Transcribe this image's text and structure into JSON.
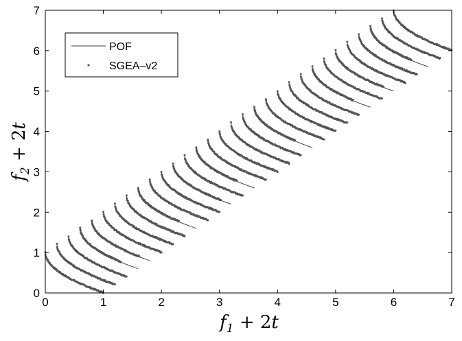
{
  "chart_data": {
    "type": "line",
    "xlabel": "f_1 + 2t",
    "ylabel": "f_2 + 2t",
    "xlim": [
      0,
      7
    ],
    "ylim": [
      0,
      7
    ],
    "xticks": [
      "0",
      "1",
      "2",
      "3",
      "4",
      "5",
      "6",
      "7"
    ],
    "yticks": [
      "0",
      "1",
      "2",
      "3",
      "4",
      "5",
      "6",
      "7"
    ],
    "grid": false,
    "legend_position": "top-left",
    "offsets": [
      0,
      0.2,
      0.4,
      0.6,
      0.8,
      1.0,
      1.2,
      1.4,
      1.6,
      1.8,
      2.0,
      2.2,
      2.4,
      2.6,
      2.8,
      3.0,
      3.2,
      3.4,
      3.6,
      3.8,
      4.0,
      4.2,
      4.4,
      4.6,
      4.8,
      5.0,
      5.2,
      5.4,
      5.6,
      5.8,
      6.0
    ],
    "front_shape": "f2 = 1 - sqrt(f1), f1 in [0,1], shifted by offset on both axes",
    "series": [
      {
        "name": "POF",
        "style": "solid line",
        "color": "#404040"
      },
      {
        "name": "SGEA–v2",
        "style": "dots",
        "color": "#555555"
      }
    ]
  }
}
